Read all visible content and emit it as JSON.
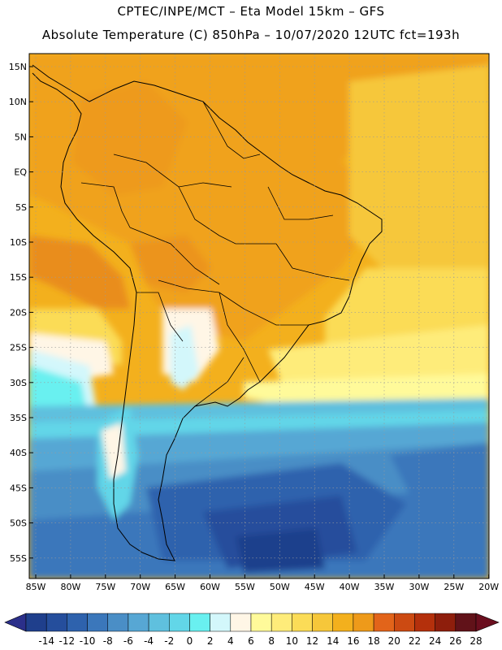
{
  "header": {
    "line1": "CPTEC/INPE/MCT –  Eta Model 15km – GFS",
    "line2": "Absolute Temperature (C) 850hPa – 10/07/2020 12UTC fct=193h"
  },
  "map": {
    "lat_labels": [
      "15N",
      "10N",
      "5N",
      "EQ",
      "5S",
      "10S",
      "15S",
      "20S",
      "25S",
      "30S",
      "35S",
      "40S",
      "45S",
      "50S",
      "55S"
    ],
    "lon_labels": [
      "85W",
      "80W",
      "75W",
      "70W",
      "65W",
      "60W",
      "55W",
      "50W",
      "45W",
      "40W",
      "35W",
      "30W",
      "25W",
      "20W"
    ],
    "lat_range": [
      -58,
      16.5
    ],
    "lon_range": [
      -86.5,
      -19
    ],
    "grid": "dotted"
  },
  "colorbar": {
    "labels": [
      "-14",
      "-12",
      "-10",
      "-8",
      "-6",
      "-4",
      "-2",
      "0",
      "2",
      "4",
      "6",
      "8",
      "10",
      "12",
      "14",
      "16",
      "18",
      "20",
      "22",
      "24",
      "26",
      "28"
    ],
    "colors": [
      "#1f3f8c",
      "#254e9c",
      "#2e62ad",
      "#3b77bb",
      "#4a8ec6",
      "#57a7d4",
      "#5fc0de",
      "#62d6e8",
      "#69f0f0",
      "#d3f7fb",
      "#fff6e6",
      "#fffa9a",
      "#feec7a",
      "#fbdc57",
      "#f6c73a",
      "#f3b01d",
      "#ee9a1a",
      "#e2641a",
      "#cc4a12",
      "#b4300c",
      "#8e1e0c",
      "#611219"
    ],
    "end_colors": [
      "#2b2f8a",
      "#6a0e1e"
    ]
  }
}
